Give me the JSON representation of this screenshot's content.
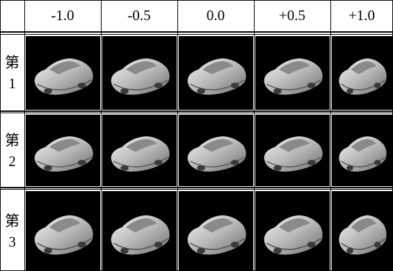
{
  "table": {
    "columns": [
      "-1.0",
      "-0.5",
      "0.0",
      "+0.5",
      "+1.0"
    ],
    "rows": [
      [
        "第",
        "1"
      ],
      [
        "第",
        "2"
      ],
      [
        "第",
        "3"
      ]
    ]
  }
}
